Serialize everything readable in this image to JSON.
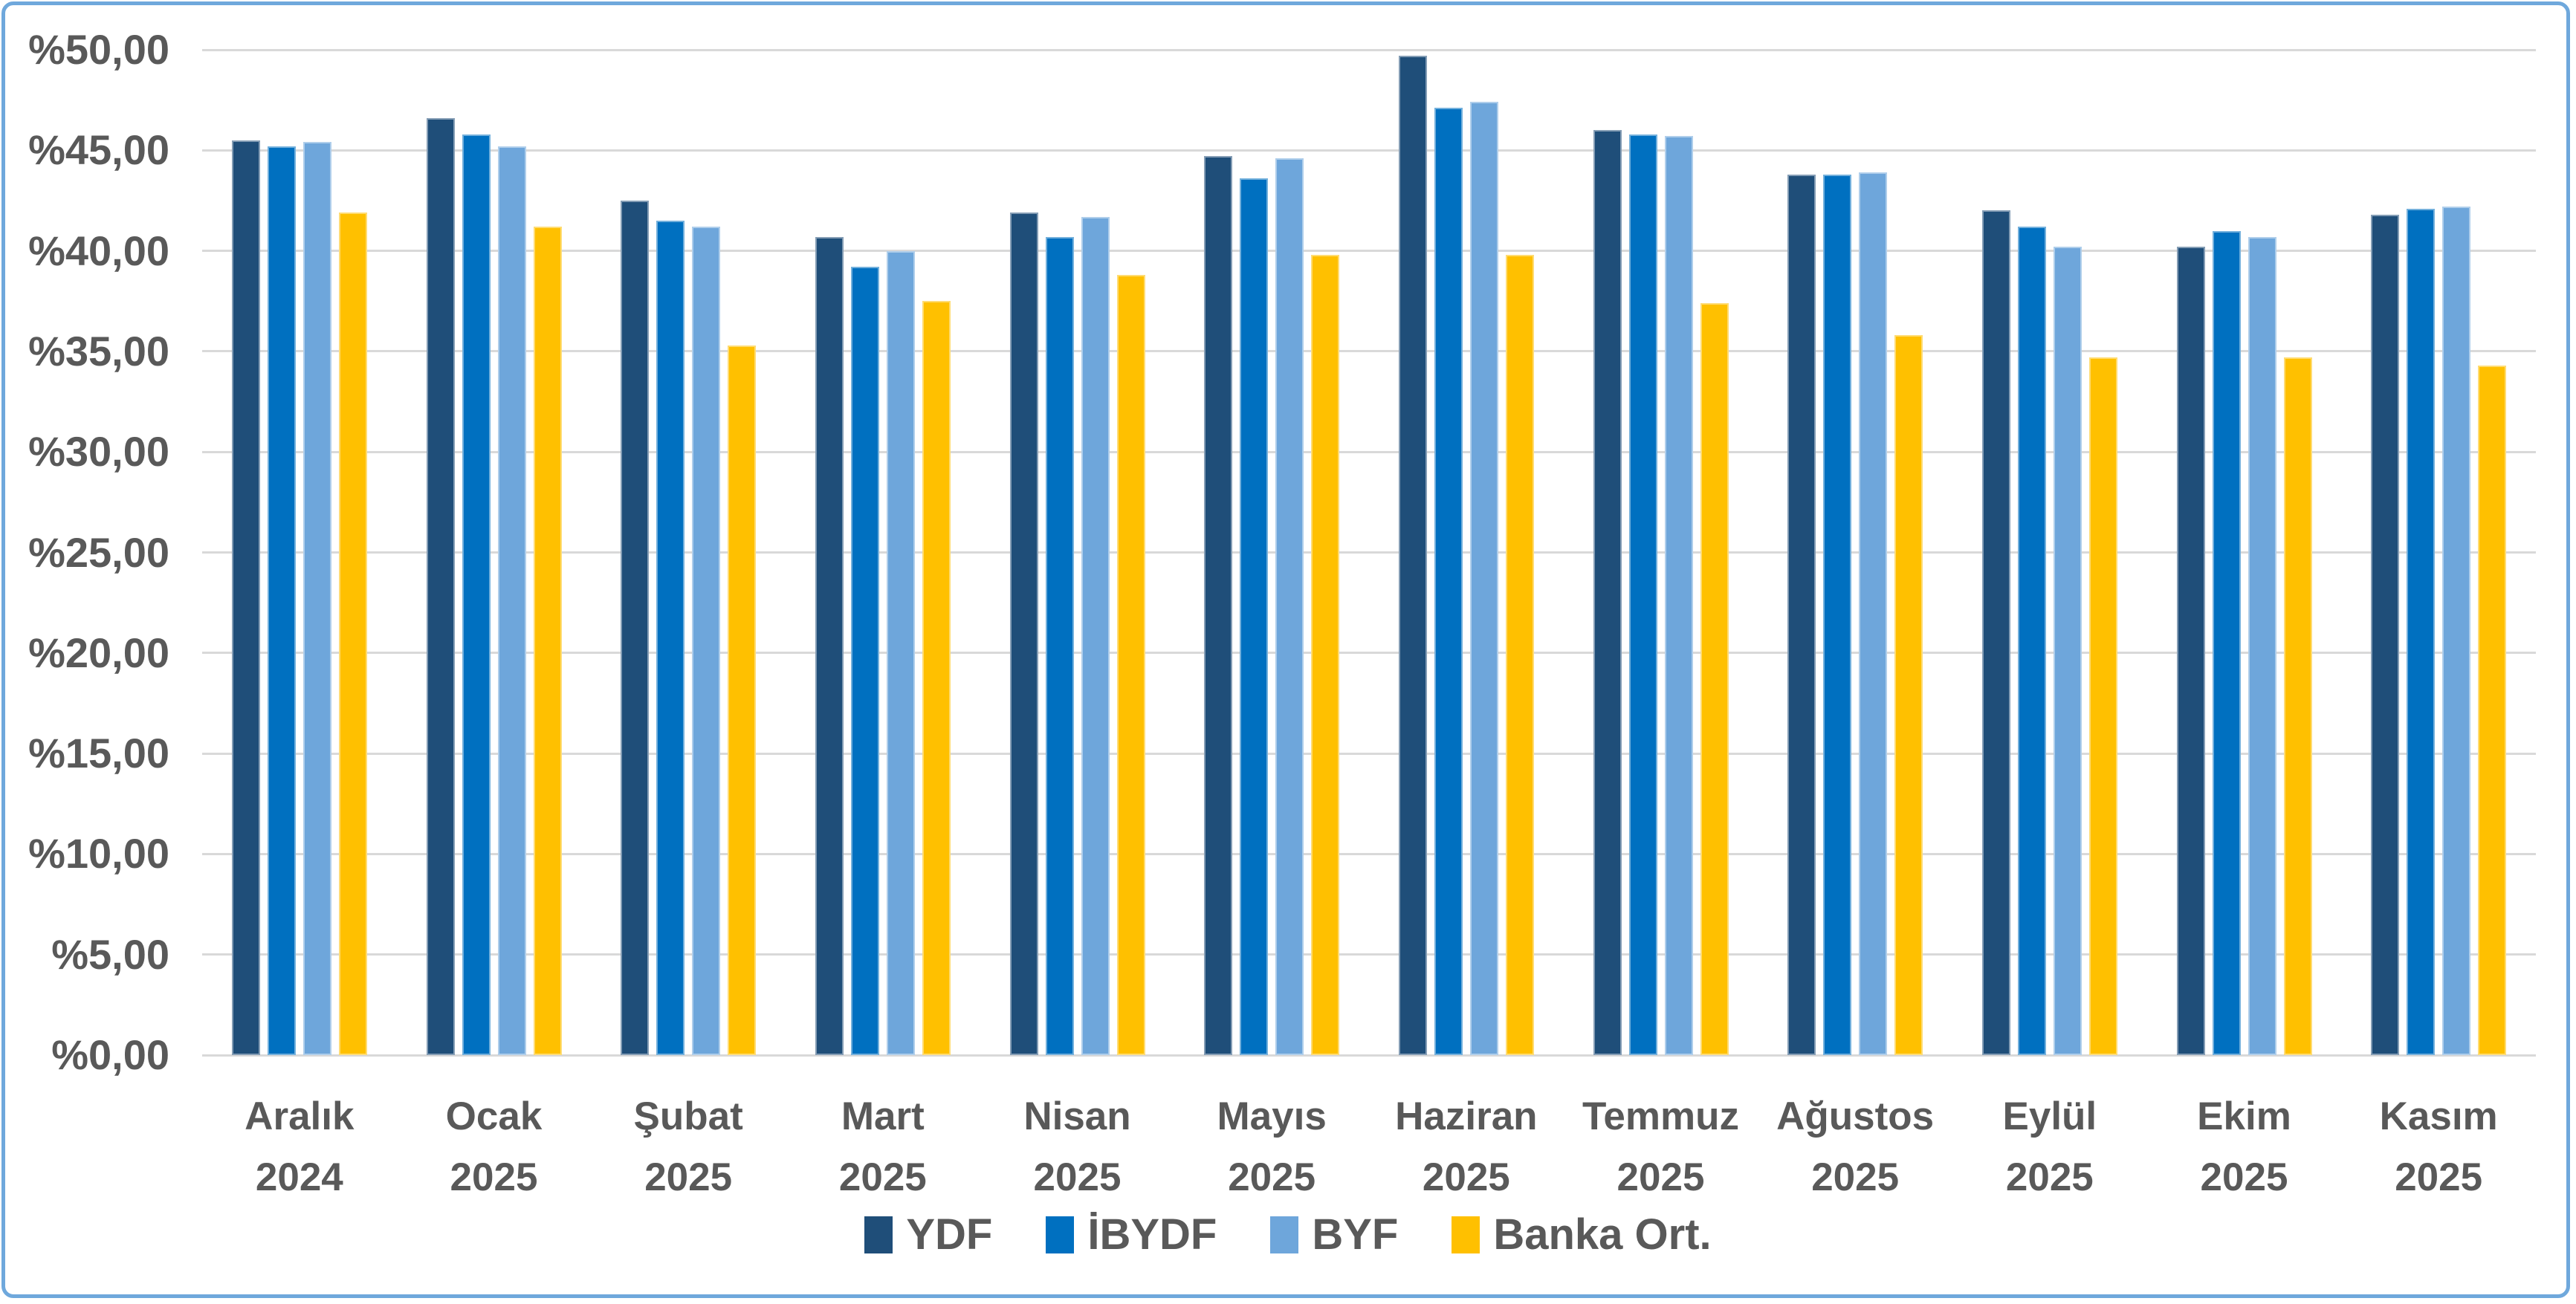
{
  "ui_colors": {
    "frame_border": "#6FA8DC",
    "gridline": "#D9D9D9",
    "text": "#595959",
    "background": "#ffffff"
  },
  "chart_data": {
    "type": "bar",
    "title": "",
    "xlabel": "",
    "ylabel": "",
    "grid": true,
    "legend_position": "bottom",
    "ylim": [
      0,
      50
    ],
    "ytick_step": 5,
    "y_axis": {
      "labels": [
        "%0,00",
        "%5,00",
        "%10,00",
        "%15,00",
        "%20,00",
        "%25,00",
        "%30,00",
        "%35,00",
        "%40,00",
        "%45,00",
        "%50,00"
      ]
    },
    "categories": [
      {
        "month": "Aralık",
        "year": "2024"
      },
      {
        "month": "Ocak",
        "year": "2025"
      },
      {
        "month": "Şubat",
        "year": "2025"
      },
      {
        "month": "Mart",
        "year": "2025"
      },
      {
        "month": "Nisan",
        "year": "2025"
      },
      {
        "month": "Mayıs",
        "year": "2025"
      },
      {
        "month": "Haziran",
        "year": "2025"
      },
      {
        "month": "Temmuz",
        "year": "2025"
      },
      {
        "month": "Ağustos",
        "year": "2025"
      },
      {
        "month": "Eylül",
        "year": "2025"
      },
      {
        "month": "Ekim",
        "year": "2025"
      },
      {
        "month": "Kasım",
        "year": "2025"
      }
    ],
    "series": [
      {
        "name": "YDF",
        "color": "#1F4E79",
        "values": [
          45.5,
          46.6,
          42.5,
          40.7,
          41.9,
          44.7,
          49.7,
          46.0,
          43.8,
          42.0,
          40.2,
          41.8
        ]
      },
      {
        "name": "İBYDF",
        "color": "#0070C0",
        "values": [
          45.2,
          45.8,
          41.5,
          39.2,
          40.7,
          43.6,
          47.1,
          45.8,
          43.8,
          41.2,
          41.0,
          42.1
        ]
      },
      {
        "name": "BYF",
        "color": "#6EA6DB",
        "values": [
          45.4,
          45.2,
          41.2,
          40.0,
          41.7,
          44.6,
          47.4,
          45.7,
          43.9,
          40.2,
          40.7,
          42.2
        ]
      },
      {
        "name": "Banka Ort.",
        "color": "#FFC000",
        "values": [
          41.9,
          41.2,
          35.3,
          37.5,
          38.8,
          39.8,
          39.8,
          37.4,
          35.8,
          34.7,
          34.7,
          34.3
        ]
      }
    ]
  }
}
